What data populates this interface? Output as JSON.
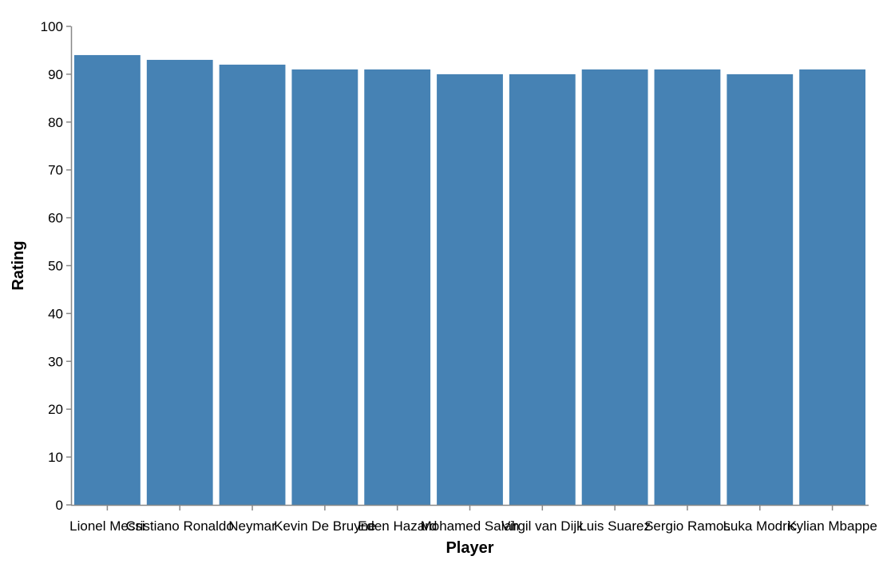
{
  "chart_data": {
    "type": "bar",
    "categories": [
      "Lionel Messi",
      "Cristiano Ronaldo",
      "Neymar",
      "Kevin De Bruyne",
      "Eden Hazard",
      "Mohamed Salah",
      "Virgil van Dijk",
      "Luis Suarez",
      "Sergio Ramos",
      "Luka Modric",
      "Kylian Mbappe"
    ],
    "values": [
      94,
      93,
      92,
      91,
      91,
      90,
      90,
      91,
      91,
      90,
      91
    ],
    "xlabel": "Player",
    "ylabel": "Rating",
    "ylim": [
      0,
      100
    ],
    "yticks": [
      0,
      10,
      20,
      30,
      40,
      50,
      60,
      70,
      80,
      90,
      100
    ],
    "grid": false,
    "colors": {
      "bar": "#4682b4",
      "axis": "#888888"
    }
  }
}
